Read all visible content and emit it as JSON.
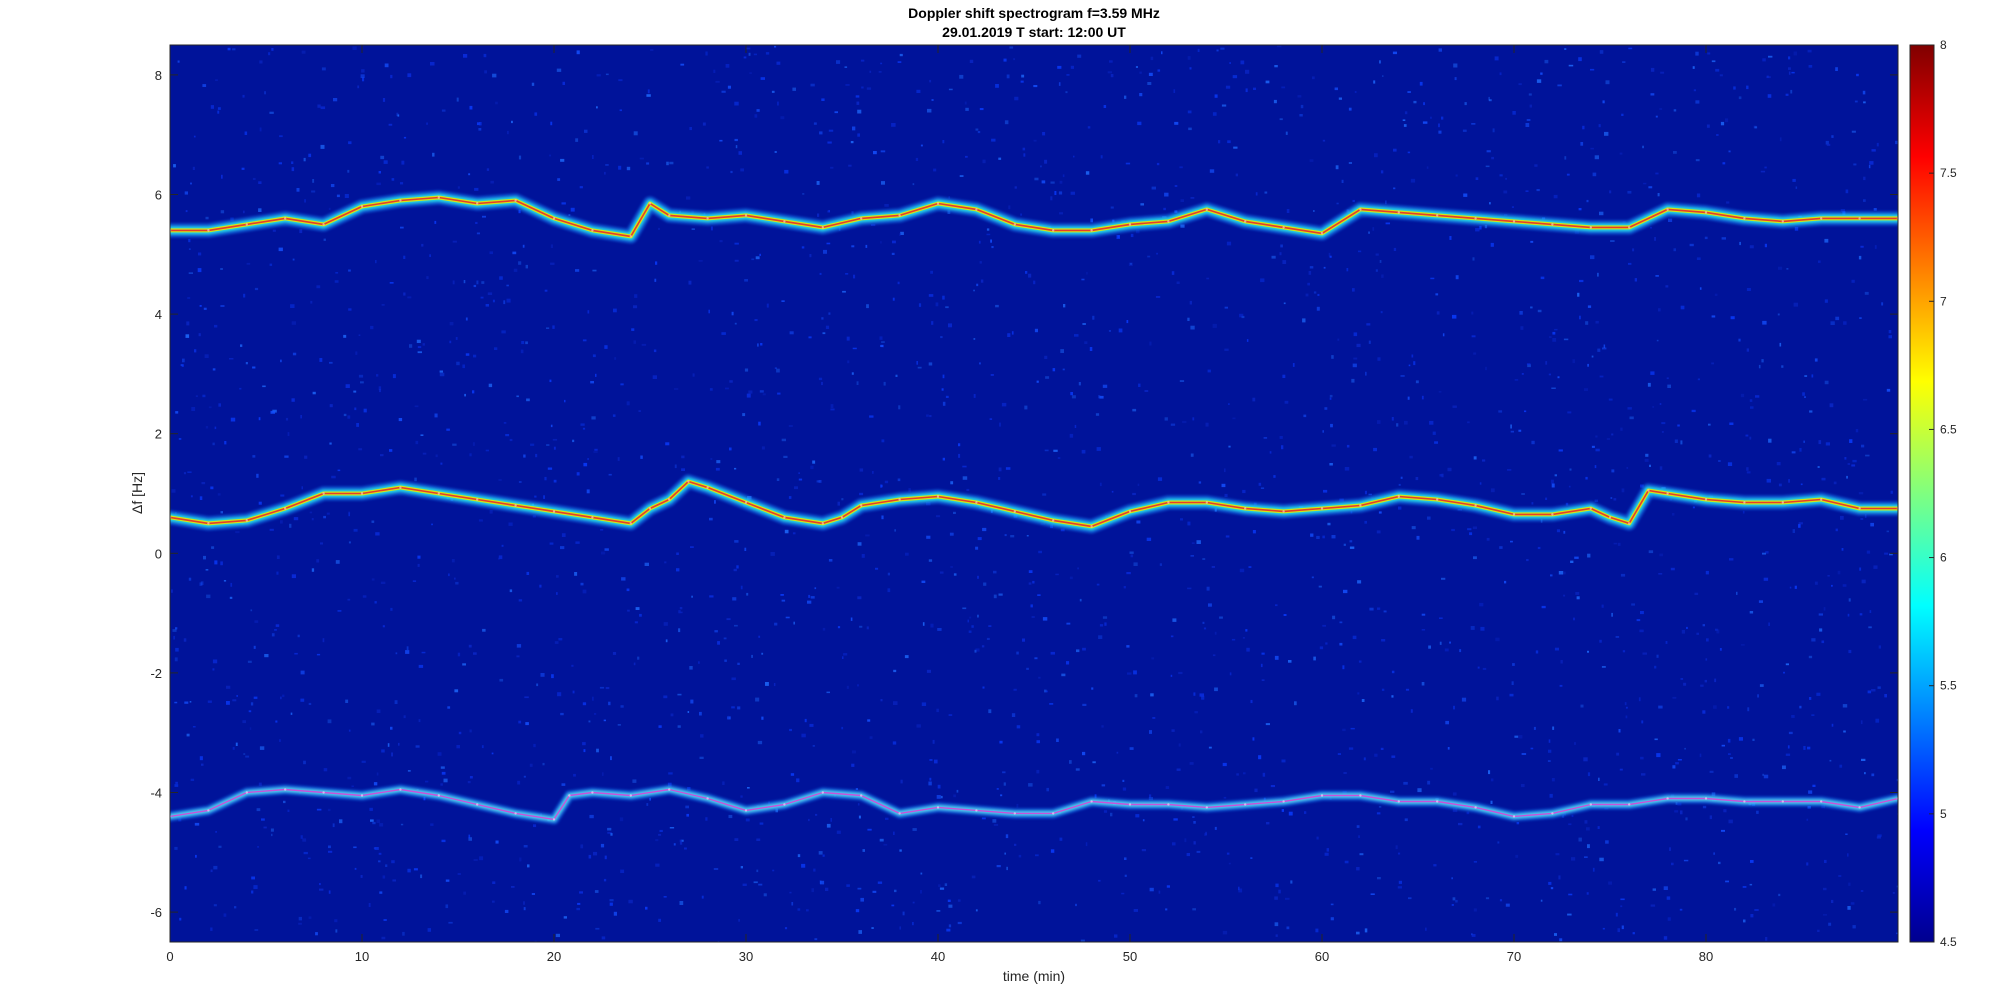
{
  "chart_data": {
    "type": "heatmap",
    "title": "Doppler shift spectrogram f=3.59 MHz",
    "subtitle": "29.01.2019   T start: 12:00 UT",
    "xlabel": "time (min)",
    "ylabel": "Δf [Hz]",
    "xlim": [
      0,
      90
    ],
    "ylim": [
      -6.5,
      8.5
    ],
    "xticks": [
      0,
      10,
      20,
      30,
      40,
      50,
      60,
      70,
      80
    ],
    "yticks": [
      -6,
      -4,
      -2,
      0,
      2,
      4,
      6,
      8
    ],
    "colorbar": {
      "range": [
        4.5,
        8
      ],
      "ticks": [
        4.5,
        5,
        5.5,
        6,
        6.5,
        7,
        7.5,
        8
      ],
      "colormap": "jet"
    },
    "grid": false,
    "series": [
      {
        "x": [
          0,
          2,
          4,
          6,
          8,
          10,
          12,
          14,
          16,
          18,
          20,
          22,
          24,
          25,
          26,
          28,
          30,
          32,
          34,
          36,
          38,
          40,
          42,
          44,
          46,
          48,
          50,
          52,
          54,
          56,
          58,
          60,
          62,
          64,
          66,
          68,
          70,
          72,
          74,
          76,
          78,
          80,
          82,
          84,
          86,
          88,
          90
        ],
        "y": [
          5.4,
          5.4,
          5.5,
          5.6,
          5.5,
          5.8,
          5.9,
          5.95,
          5.85,
          5.9,
          5.6,
          5.4,
          5.3,
          5.85,
          5.65,
          5.6,
          5.65,
          5.55,
          5.45,
          5.6,
          5.65,
          5.85,
          5.75,
          5.5,
          5.4,
          5.4,
          5.5,
          5.55,
          5.75,
          5.55,
          5.45,
          5.35,
          5.75,
          5.7,
          5.65,
          5.6,
          5.55,
          5.5,
          5.45,
          5.45,
          5.75,
          5.7,
          5.6,
          5.55,
          5.6,
          5.6,
          5.6
        ]
      },
      {
        "x": [
          0,
          2,
          4,
          6,
          8,
          10,
          12,
          14,
          16,
          18,
          20,
          22,
          24,
          25,
          26,
          27,
          28,
          30,
          32,
          34,
          35,
          36,
          38,
          40,
          42,
          44,
          46,
          48,
          50,
          52,
          54,
          56,
          58,
          60,
          62,
          64,
          66,
          68,
          70,
          72,
          74,
          75,
          76,
          77,
          78,
          80,
          82,
          84,
          86,
          88,
          90
        ],
        "y": [
          0.6,
          0.5,
          0.55,
          0.75,
          1.0,
          1.0,
          1.1,
          1.0,
          0.9,
          0.8,
          0.7,
          0.6,
          0.5,
          0.75,
          0.9,
          1.2,
          1.1,
          0.85,
          0.6,
          0.5,
          0.6,
          0.8,
          0.9,
          0.95,
          0.85,
          0.7,
          0.55,
          0.45,
          0.7,
          0.85,
          0.85,
          0.75,
          0.7,
          0.75,
          0.8,
          0.95,
          0.9,
          0.8,
          0.65,
          0.65,
          0.75,
          0.6,
          0.5,
          1.05,
          1.0,
          0.9,
          0.85,
          0.85,
          0.9,
          0.75,
          0.75
        ]
      },
      {
        "x": [
          0,
          2,
          4,
          6,
          8,
          10,
          12,
          14,
          16,
          18,
          20,
          20.8,
          22,
          24,
          26,
          28,
          30,
          32,
          34,
          36,
          38,
          40,
          42,
          44,
          46,
          48,
          50,
          52,
          54,
          56,
          58,
          60,
          62,
          64,
          66,
          68,
          70,
          72,
          74,
          76,
          78,
          80,
          82,
          84,
          86,
          88,
          90
        ],
        "y": [
          -4.4,
          -4.3,
          -4.0,
          -3.95,
          -4.0,
          -4.05,
          -3.95,
          -4.05,
          -4.2,
          -4.35,
          -4.45,
          -4.05,
          -4.0,
          -4.05,
          -3.95,
          -4.1,
          -4.3,
          -4.2,
          -4.0,
          -4.05,
          -4.35,
          -4.25,
          -4.3,
          -4.35,
          -4.35,
          -4.15,
          -4.2,
          -4.2,
          -4.25,
          -4.2,
          -4.15,
          -4.05,
          -4.05,
          -4.15,
          -4.15,
          -4.25,
          -4.4,
          -4.35,
          -4.2,
          -4.2,
          -4.1,
          -4.1,
          -4.15,
          -4.15,
          -4.15,
          -4.25,
          -4.1
        ]
      }
    ]
  }
}
